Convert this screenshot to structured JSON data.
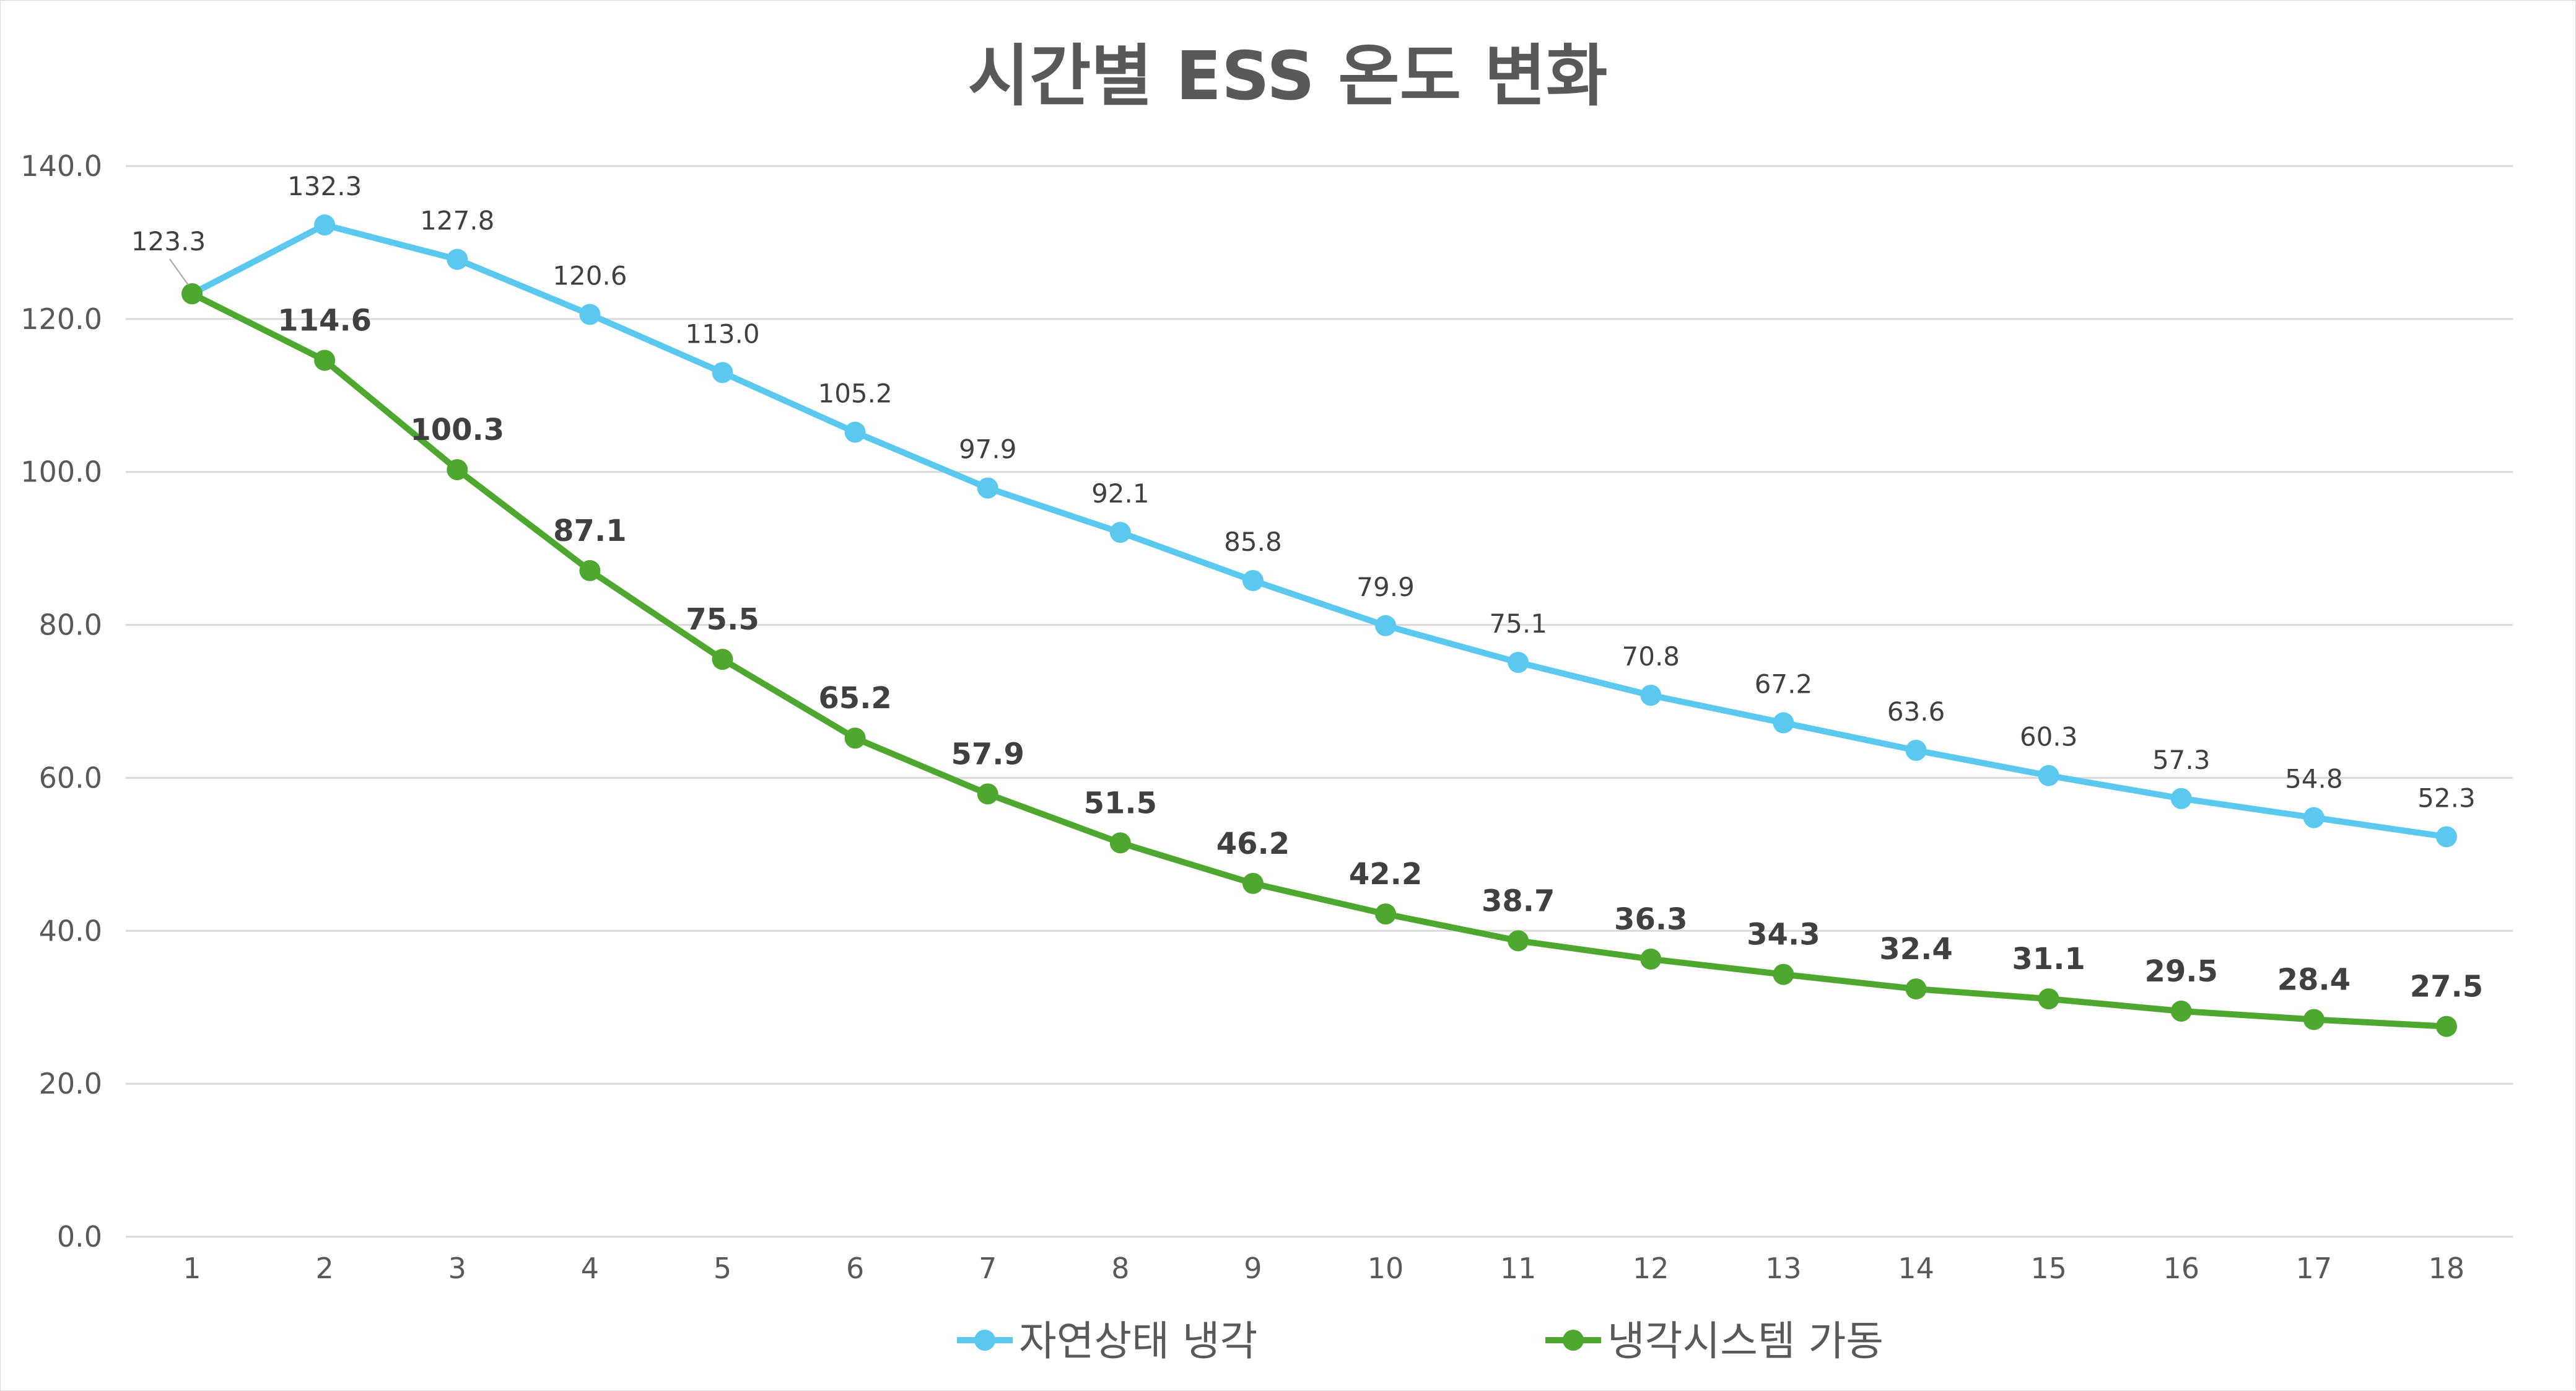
{
  "colors": {
    "natural": "#5BC8F0",
    "system": "#4EA72E",
    "grid": "#d9d9d9",
    "text": "#595959"
  },
  "chart_data": {
    "type": "line",
    "title": "시간별 ESS 온도 변화",
    "xlabel": "",
    "ylabel": "",
    "ylim": [
      0,
      140
    ],
    "ytick_step": 20,
    "ytick_labels": [
      "0.0",
      "20.0",
      "40.0",
      "60.0",
      "80.0",
      "100.0",
      "120.0",
      "140.0"
    ],
    "grid": true,
    "legend_position": "bottom",
    "categories": [
      "1",
      "2",
      "3",
      "4",
      "5",
      "6",
      "7",
      "8",
      "9",
      "10",
      "11",
      "12",
      "13",
      "14",
      "15",
      "16",
      "17",
      "18"
    ],
    "series": [
      {
        "name": "자연상태 냉각",
        "values": [
          123.3,
          132.3,
          127.8,
          120.6,
          113.0,
          105.2,
          97.9,
          92.1,
          85.8,
          79.9,
          75.1,
          70.8,
          67.2,
          63.6,
          60.3,
          57.3,
          54.8,
          52.3
        ],
        "labels": [
          "123.3",
          "132.3",
          "127.8",
          "120.6",
          "113.0",
          "105.2",
          "97.9",
          "92.1",
          "85.8",
          "79.9",
          "75.1",
          "70.8",
          "67.2",
          "63.6",
          "60.3",
          "57.3",
          "54.8",
          "52.3"
        ]
      },
      {
        "name": "냉각시스템 가동",
        "values": [
          123.3,
          114.6,
          100.3,
          87.1,
          75.5,
          65.2,
          57.9,
          51.5,
          46.2,
          42.2,
          38.7,
          36.3,
          34.3,
          32.4,
          31.1,
          29.5,
          28.4,
          27.5
        ],
        "labels": [
          "",
          "114.6",
          "100.3",
          "87.1",
          "75.5",
          "65.2",
          "57.9",
          "51.5",
          "46.2",
          "42.2",
          "38.7",
          "36.3",
          "34.3",
          "32.4",
          "31.1",
          "29.5",
          "28.4",
          "27.5"
        ]
      }
    ]
  }
}
